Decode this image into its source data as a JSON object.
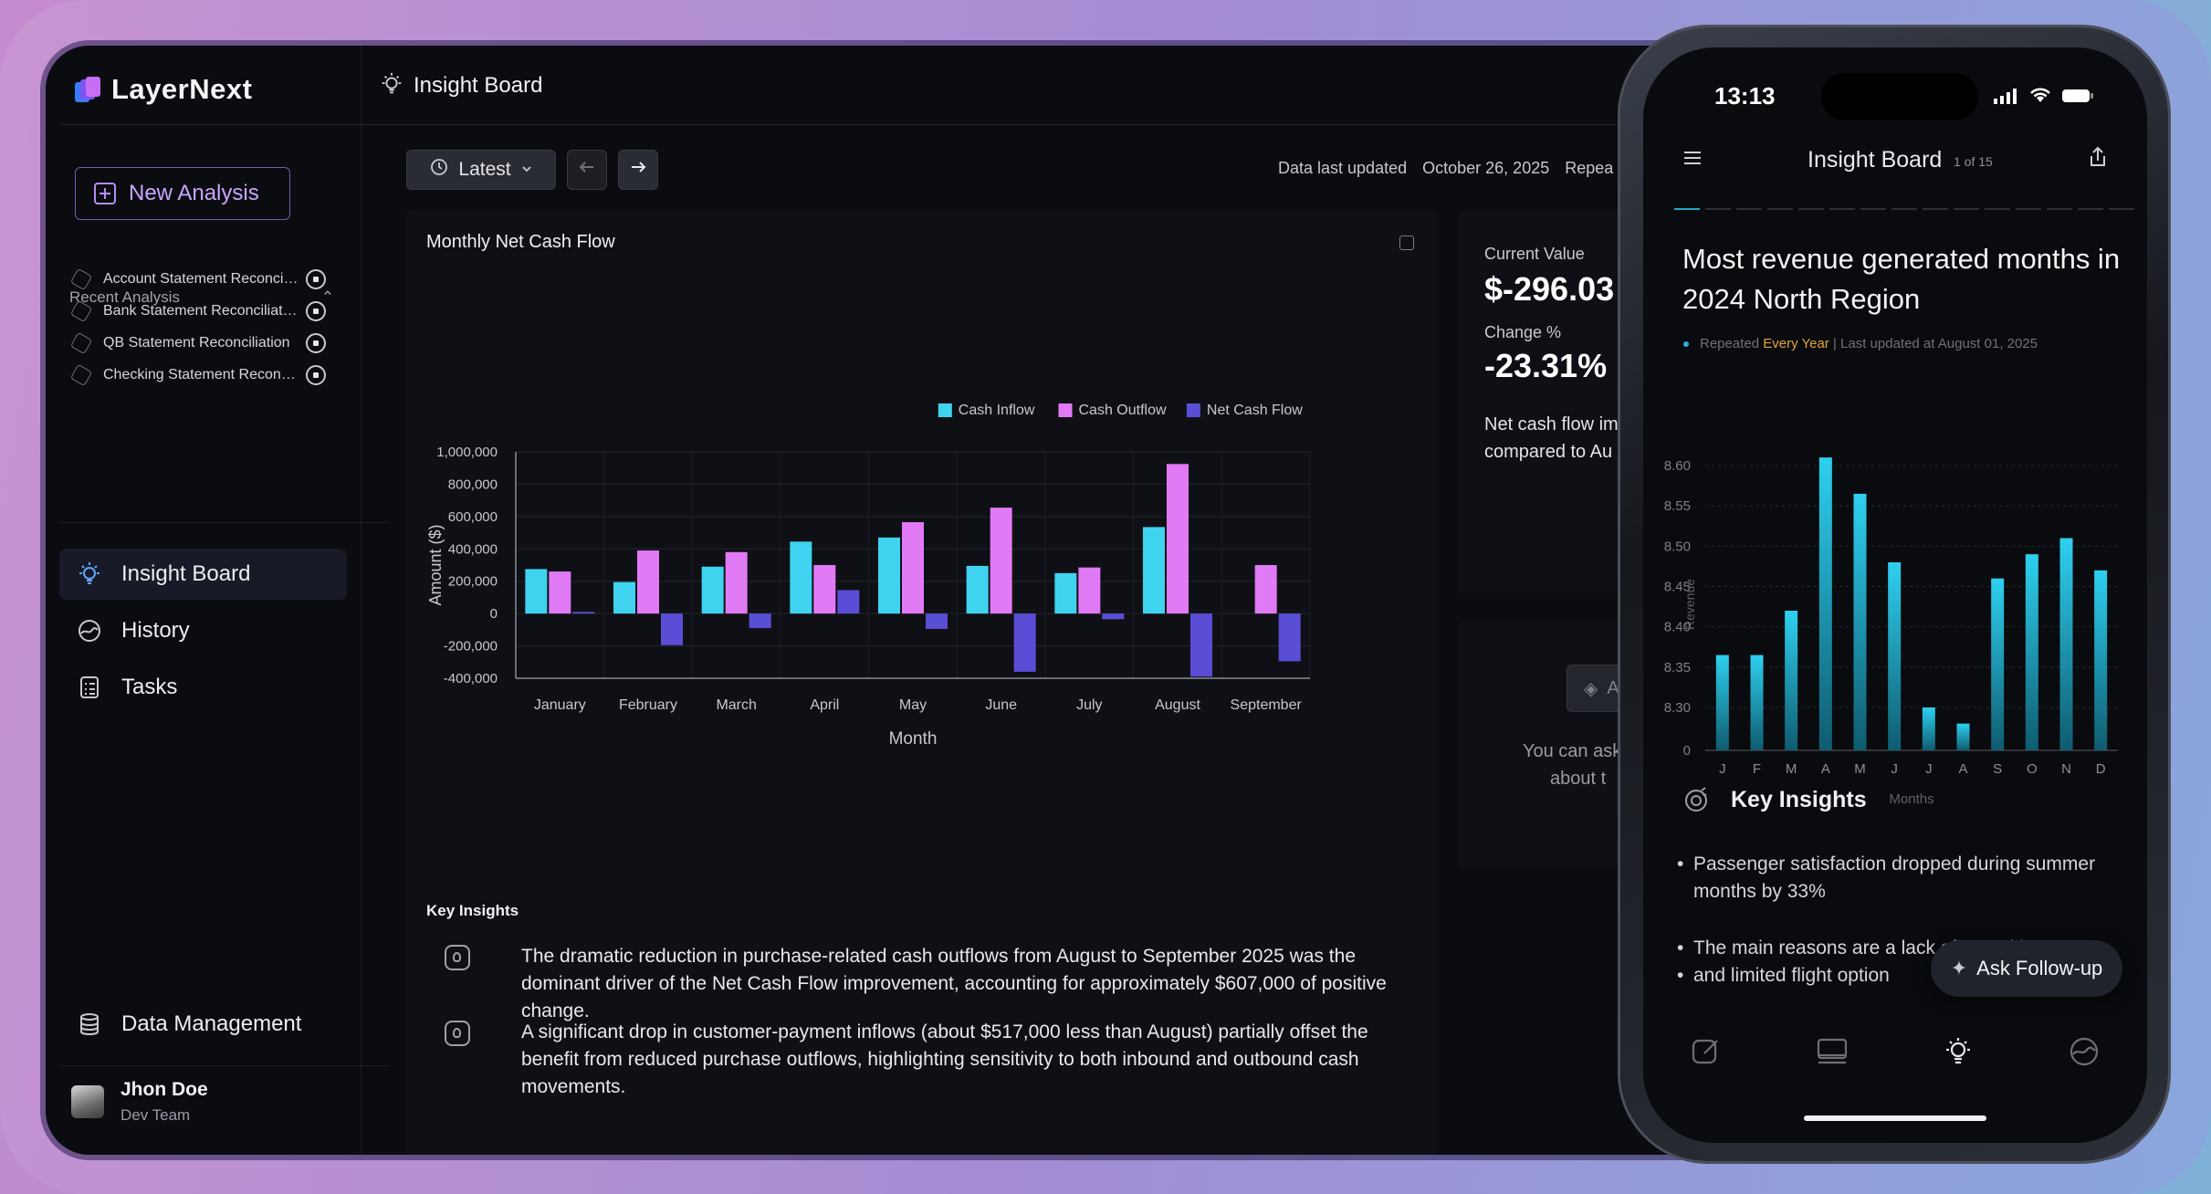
{
  "app": {
    "name": "LayerNext",
    "new_analysis": "New Analysis",
    "recent_heading": "Recent Analysis",
    "recent": [
      "Account Statement Reconciliation",
      "Bank Statement Reconciliation",
      "QB Statement Reconciliation",
      "Checking Statement Reconciliation"
    ],
    "nav": [
      "Insight Board",
      "History",
      "Tasks"
    ],
    "data_management": "Data Management",
    "user": {
      "name": "Jhon Doe",
      "team": "Dev Team"
    }
  },
  "header": {
    "title": "Insight Board"
  },
  "toolbar": {
    "latest": "Latest",
    "updated_label": "Data last updated",
    "updated_date": "October 26, 2025",
    "repeat_label": "Repea"
  },
  "chart_card": {
    "title": "Monthly Net Cash Flow"
  },
  "chart_data": {
    "type": "bar",
    "title": "Monthly Net Cash Flow",
    "xlabel": "Month",
    "ylabel": "Amount ($)",
    "categories": [
      "January",
      "February",
      "March",
      "April",
      "May",
      "June",
      "July",
      "August",
      "September"
    ],
    "series": [
      {
        "name": "Cash Inflow",
        "color": "#3fd3f0",
        "values": [
          275000,
          195000,
          290000,
          445000,
          470000,
          295000,
          250000,
          535000,
          0
        ]
      },
      {
        "name": "Cash Outflow",
        "color": "#e07af5",
        "values": [
          260000,
          390000,
          380000,
          300000,
          565000,
          655000,
          285000,
          925000,
          300000
        ]
      },
      {
        "name": "Net Cash Flow",
        "color": "#5a4ed6",
        "values": [
          10000,
          -195000,
          -90000,
          145000,
          -95000,
          -360000,
          -35000,
          -390000,
          -295000
        ]
      }
    ],
    "yticks": [
      "1,000,000",
      "800,000",
      "600,000",
      "400,000",
      "200,000",
      "0",
      "-200,000",
      "-400,000"
    ],
    "ylim": [
      -400000,
      1000000
    ],
    "legend": "top-right",
    "grid": true
  },
  "key_insights": {
    "heading": "Key Insights",
    "items": [
      "The dramatic reduction in purchase-related cash outflows from August to September 2025 was the dominant driver of the Net Cash Flow improvement, accounting for approximately $607,000 of positive change.",
      "A significant drop in customer-payment inflows (about $517,000 less than August) partially offset the benefit from reduced purchase outflows, highlighting sensitivity to both inbound and outbound cash movements."
    ]
  },
  "summary": {
    "current_label": "Current Value",
    "current_value": "$-296.03",
    "change_label": "Change %",
    "change_value": "-23.31%",
    "note_line1": "Net cash flow im",
    "note_line2": "compared to Au",
    "ask_hint1": "You can ask",
    "ask_hint2": "about t",
    "ask_btn": "A"
  },
  "phone": {
    "time": "13:13",
    "title": "Insight Board",
    "count": "1 of 15",
    "headline": "Most revenue generated months in 2024 North Region",
    "repeated": "Repeated",
    "every_year": "Every Year",
    "updated": "| Last updated at August 01, 2025",
    "chart": {
      "type": "bar",
      "xlabel": "Months",
      "ylabel": "Revenue",
      "categories": [
        "J",
        "F",
        "M",
        "A",
        "M",
        "J",
        "J",
        "A",
        "S",
        "O",
        "N",
        "D"
      ],
      "values": [
        8.365,
        8.365,
        8.42,
        8.61,
        8.565,
        8.48,
        8.3,
        8.28,
        8.46,
        8.49,
        8.51,
        8.47
      ],
      "yticks": [
        "8.60",
        "8.55",
        "8.50",
        "8.45",
        "8.40",
        "8.35",
        "8.30",
        "0"
      ]
    },
    "key_insights": "Key Insights",
    "bullets": [
      "Passenger satisfaction dropped during summer months by 33%",
      "The main reasons are a lack of amenities",
      "and limited flight option"
    ],
    "follow_up": "Ask Follow-up"
  }
}
